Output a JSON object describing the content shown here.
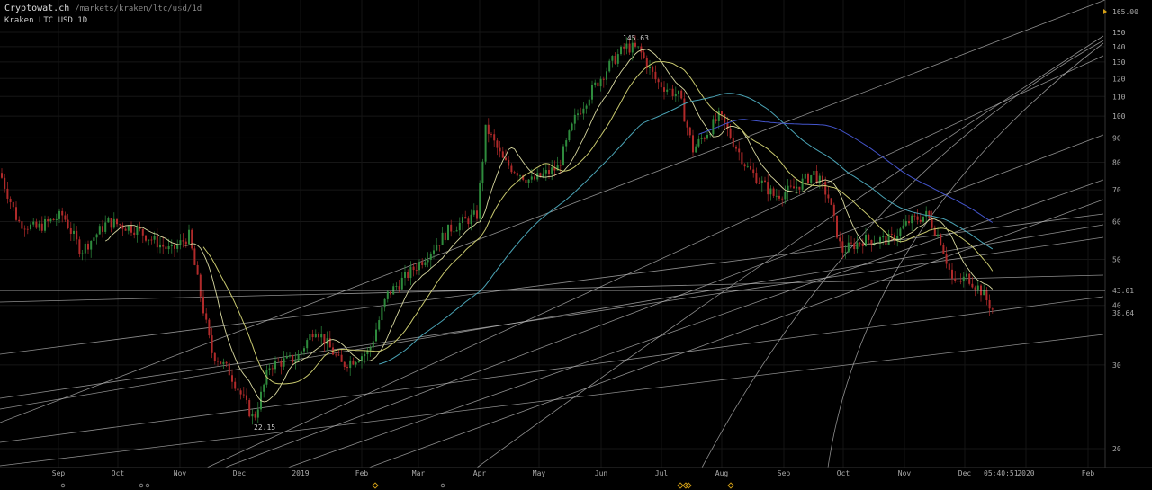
{
  "header": {
    "site_name": "Cryptowat.ch",
    "site_path": "/markets/kraken/ltc/usd/1d",
    "market_label": "Kraken LTC USD 1D"
  },
  "colors": {
    "background": "#000000",
    "up_candle": "#2e8b3d",
    "down_candle": "#b02a2a",
    "trendline": "#bdbdbd",
    "ma_short": "#c8c86e",
    "ma_mid": "#c8c86e",
    "ma_long": "#4aa3b5",
    "ma_xlong": "#4455cc",
    "marker": "#d4a017"
  },
  "chart_data": {
    "type": "candlestick",
    "y_scale": "log",
    "ylim": [
      18,
      168
    ],
    "y_ticks": [
      "20",
      "30",
      "40",
      "50",
      "60",
      "70",
      "80",
      "90",
      "100",
      "110",
      "120",
      "130",
      "140",
      "150"
    ],
    "y_tick_values": [
      20,
      30,
      40,
      50,
      60,
      70,
      80,
      90,
      100,
      110,
      120,
      130,
      140,
      150
    ],
    "x_ticks": [
      "Sep",
      "Oct",
      "Nov",
      "Dec",
      "2019",
      "Feb",
      "Mar",
      "Apr",
      "May",
      "Jun",
      "Jul",
      "Aug",
      "Sep",
      "Oct",
      "Nov",
      "Dec",
      "2020",
      "Feb"
    ],
    "price_labels": {
      "top": "165.00",
      "level": "43.01",
      "last": "38.64"
    },
    "annotations": {
      "high": "145.63",
      "low": "22.15"
    },
    "time_readout": "05:40:51",
    "horizontal_level": 43.01,
    "last_price": 38.64,
    "high_value": 145.63,
    "low_value": 22.15
  },
  "bottom_markers": [
    {
      "kind": "circle"
    },
    {
      "kind": "circle"
    },
    {
      "kind": "circle"
    },
    {
      "kind": "diamond"
    },
    {
      "kind": "circle"
    },
    {
      "kind": "diamond"
    },
    {
      "kind": "diamond"
    },
    {
      "kind": "diamond"
    },
    {
      "kind": "diamond"
    }
  ]
}
